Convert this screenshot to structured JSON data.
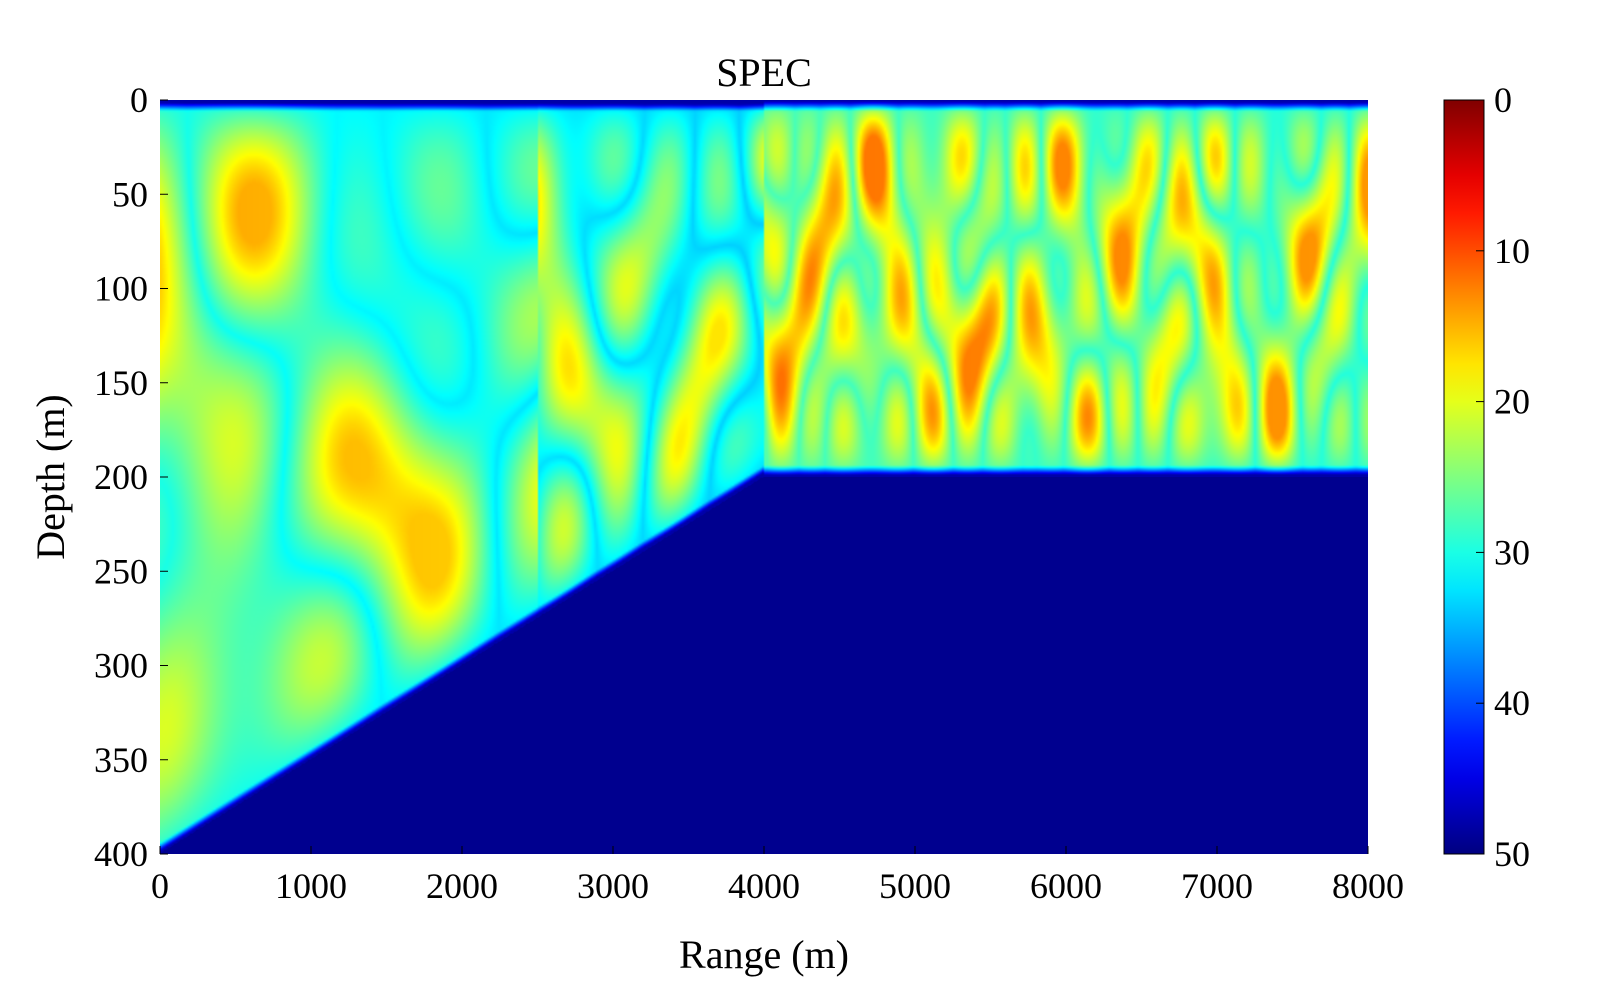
{
  "chart_data": {
    "type": "heatmap",
    "title": "SPEC",
    "xlabel": "Range (m)",
    "ylabel": "Depth (m)",
    "xlim": [
      0,
      8000
    ],
    "ylim": [
      0,
      400
    ],
    "y_reversed": true,
    "x_ticks": [
      0,
      1000,
      2000,
      3000,
      4000,
      5000,
      6000,
      7000,
      8000
    ],
    "x_tick_labels": [
      "0",
      "1000",
      "2000",
      "3000",
      "4000",
      "5000",
      "6000",
      "7000",
      "8000"
    ],
    "y_ticks": [
      0,
      50,
      100,
      150,
      200,
      250,
      300,
      350,
      400
    ],
    "y_tick_labels": [
      "0",
      "50",
      "100",
      "150",
      "200",
      "250",
      "300",
      "350",
      "400"
    ],
    "colorbar": {
      "colormap": "jet",
      "range": [
        0,
        50
      ],
      "reversed": true,
      "ticks": [
        0,
        10,
        20,
        30,
        40,
        50
      ],
      "tick_labels": [
        "0",
        "10",
        "20",
        "30",
        "40",
        "50"
      ]
    },
    "bathymetry": {
      "range_m": [
        0,
        4000,
        8000
      ],
      "depth_m": [
        400,
        200,
        200
      ]
    },
    "field_patterns": [
      {
        "range_m": [
          0,
          2500
        ],
        "description_values_db": [
          15,
          22
        ],
        "cell_range_period_m": 850
      },
      {
        "range_m": [
          2500,
          4000
        ],
        "description_values_db": [
          10,
          22
        ],
        "cell_range_period_m": 450
      },
      {
        "range_m": [
          4000,
          8000
        ],
        "description_values_db": [
          8,
          25
        ],
        "cell_range_period_m": 270
      }
    ],
    "grid": false,
    "legend": "none"
  }
}
